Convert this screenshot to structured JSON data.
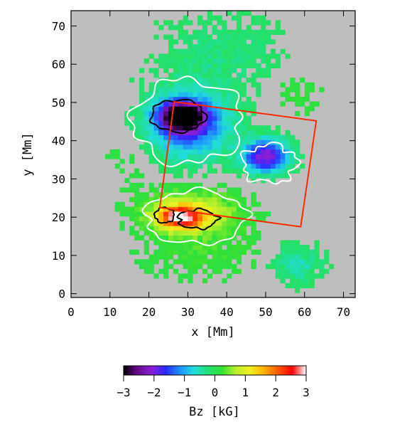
{
  "chart_data": {
    "type": "heatmap",
    "xlabel": "x [Mm]",
    "ylabel": "y [Mm]",
    "xlim": [
      0,
      73
    ],
    "ylim": [
      -1,
      74
    ],
    "x_ticks": [
      0,
      10,
      20,
      30,
      40,
      50,
      60,
      70
    ],
    "y_ticks": [
      0,
      10,
      20,
      30,
      40,
      50,
      60,
      70
    ],
    "background_color": "#bebebe",
    "quantity": "Bz [kG]",
    "colorbar": {
      "label": "Bz [kG]",
      "range": [
        -3,
        3
      ],
      "ticks": [
        "−3",
        "−2",
        "−1",
        "0",
        "1",
        "2",
        "3"
      ],
      "colormap": [
        "#000000",
        "#6a0a8a",
        "#8a1fd8",
        "#2a2aff",
        "#1f8fff",
        "#22dcdc",
        "#22e077",
        "#33e033",
        "#b8f02a",
        "#f0f020",
        "#ffb000",
        "#ff5a00",
        "#ff0000",
        "#ffffff"
      ]
    },
    "contours": [
      {
        "level_color": "#ffffff"
      },
      {
        "level_color": "#000000"
      }
    ],
    "rectangle": {
      "color": "#ff2a00",
      "corners": [
        [
          26.5,
          50.2
        ],
        [
          63.0,
          45.2
        ],
        [
          59.0,
          17.5
        ],
        [
          22.8,
          22.5
        ]
      ]
    },
    "regions": [
      {
        "shape": "negative-umbra",
        "center": [
          28.5,
          46.5
        ],
        "radius": [
          7,
          4.5
        ],
        "peak_kG": -3.0
      },
      {
        "shape": "negative-penumbra",
        "center": [
          30,
          44
        ],
        "radius": [
          13,
          10
        ],
        "peak_kG": -1.6
      },
      {
        "shape": "negative-tail",
        "center": [
          50,
          36
        ],
        "radius": [
          7,
          5
        ],
        "peak_kG": -2.2
      },
      {
        "shape": "positive-core",
        "center": [
          28,
          20
        ],
        "radius": [
          7,
          3.5
        ],
        "peak_kG": 2.4
      },
      {
        "shape": "positive-halo",
        "center": [
          31,
          21
        ],
        "radius": [
          14,
          7
        ],
        "peak_kG": 1.0
      },
      {
        "shape": "negative-plage-1",
        "center": [
          38,
          62
        ],
        "radius": [
          20,
          14
        ],
        "peak_kG": -0.25
      },
      {
        "shape": "negative-plage-2",
        "center": [
          58,
          52
        ],
        "radius": [
          10,
          8
        ],
        "peak_kG": 0.15
      },
      {
        "shape": "negative-plage-3",
        "center": [
          16,
          38
        ],
        "radius": [
          9,
          12
        ],
        "peak_kG": 0.15
      },
      {
        "shape": "positive-plage-4",
        "center": [
          35,
          10
        ],
        "radius": [
          20,
          8
        ],
        "peak_kG": 0.2
      },
      {
        "shape": "negative-plage-5",
        "center": [
          58,
          8
        ],
        "radius": [
          8,
          6
        ],
        "peak_kG": -0.5
      }
    ]
  }
}
